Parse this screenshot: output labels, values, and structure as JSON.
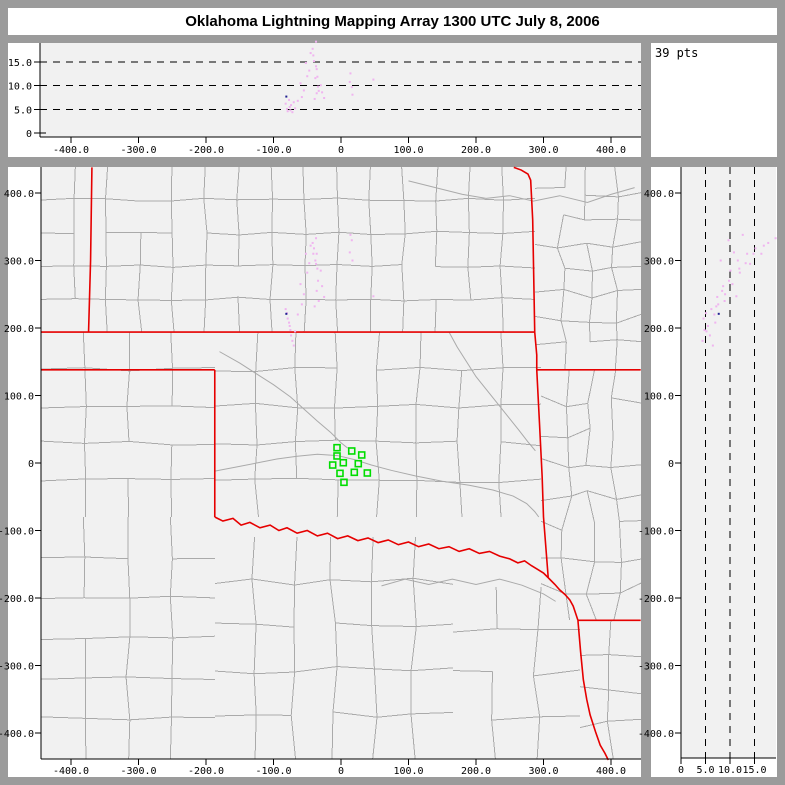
{
  "title": "Oklahoma Lightning Mapping Array   1300 UTC  July 8, 2006",
  "points_label": "39 pts",
  "colors": {
    "frame": "#9b9b9b",
    "panel_bg": "#ffffff",
    "plot_bg": "#f1f1f1",
    "county": "#aaaaaa",
    "river": "#aaaaaa",
    "state_border": "#e60000",
    "station": "#00dd00",
    "point_faint": "#f0b4f0",
    "point_dark": "#202090",
    "axis": "#000000"
  },
  "axes": {
    "east_west_km": {
      "ticks": [
        -400,
        -300,
        -200,
        -100,
        0,
        100,
        200,
        300,
        400
      ],
      "tick_labels": [
        "-400.0",
        "-300.0",
        "-200.0",
        "-100.0",
        "0",
        "100.0",
        "200.0",
        "300.0",
        "400.0"
      ]
    },
    "north_south_km": {
      "ticks": [
        400,
        300,
        200,
        100,
        0,
        -100,
        -200,
        -300,
        -400
      ],
      "tick_labels": [
        "400.0",
        "300.0",
        "200.0",
        "100.0",
        "0",
        "-100.0",
        "-200.0",
        "-300.0",
        "-400.0"
      ]
    },
    "altitude_km": {
      "ticks": [
        0,
        5,
        10,
        15
      ],
      "tick_labels": [
        "0",
        "5.0",
        "10.0",
        "15.0"
      ],
      "dashed_levels": [
        5,
        10,
        15
      ]
    }
  },
  "chart_data": {
    "type": "scatter",
    "title": "Oklahoma Lightning Mapping Array   1300 UTC  July 8, 2006",
    "points_count": 39,
    "panels": [
      {
        "name": "altitude-vs-eastwest",
        "x": "east_west_km",
        "y": "altitude_km",
        "xlim": [
          -444,
          444
        ],
        "ylim": [
          0,
          19.5
        ]
      },
      {
        "name": "plan-view-map",
        "x": "east_west_km",
        "y": "north_south_km",
        "xlim": [
          -444,
          444
        ],
        "ylim": [
          -438,
          438
        ]
      },
      {
        "name": "altitude-vs-northsouth",
        "x": "altitude_km",
        "y": "north_south_km",
        "xlim": [
          0,
          19.5
        ],
        "ylim": [
          -438,
          438
        ]
      }
    ],
    "points_e_n_alt": [
      [
        -82,
        228,
        6.2
      ],
      [
        -80,
        222,
        5.1
      ],
      [
        -79,
        214,
        4.6
      ],
      [
        -77,
        208,
        7.0
      ],
      [
        -76,
        203,
        5.5
      ],
      [
        -75,
        197,
        4.8
      ],
      [
        -74,
        189,
        5.9
      ],
      [
        -72,
        181,
        4.4
      ],
      [
        -70,
        174,
        6.5
      ],
      [
        -81,
        221,
        7.7
      ],
      [
        -37,
        333,
        19.3
      ],
      [
        -42,
        326,
        17.8
      ],
      [
        -40,
        318,
        15.2
      ],
      [
        -36,
        310,
        13.5
      ],
      [
        -38,
        300,
        11.6
      ],
      [
        -35,
        288,
        11.9
      ],
      [
        -34,
        270,
        9.8
      ],
      [
        -36,
        255,
        8.4
      ],
      [
        -33,
        240,
        8.9
      ],
      [
        -39,
        232,
        7.2
      ],
      [
        -41,
        310,
        16.4
      ],
      [
        -37,
        295,
        14.1
      ],
      [
        14,
        338,
        12.6
      ],
      [
        16,
        330,
        9.7
      ],
      [
        13,
        312,
        10.8
      ],
      [
        17,
        300,
        8.1
      ],
      [
        -55,
        250,
        9.0
      ],
      [
        -60,
        265,
        10.5
      ],
      [
        -50,
        282,
        12.0
      ],
      [
        -47,
        296,
        13.2
      ],
      [
        -58,
        235,
        7.6
      ],
      [
        -64,
        220,
        6.8
      ],
      [
        -52,
        310,
        14.8
      ],
      [
        -45,
        322,
        16.9
      ],
      [
        -30,
        285,
        10.1
      ],
      [
        -28,
        262,
        8.6
      ],
      [
        -25,
        246,
        7.4
      ],
      [
        48,
        247,
        11.3
      ],
      [
        -68,
        195,
        5.2
      ]
    ],
    "dark_point_index": 9,
    "stations_e_n": [
      [
        -5.9,
        22.7
      ],
      [
        15.9,
        17.8
      ],
      [
        30.7,
        11.9
      ],
      [
        -5.9,
        10.4
      ],
      [
        -12.3,
        -3.0
      ],
      [
        3.4,
        0.4
      ],
      [
        25.6,
        -1.0
      ],
      [
        -1.5,
        -15.3
      ],
      [
        19.7,
        -13.8
      ],
      [
        39.0,
        -14.8
      ],
      [
        4.4,
        -28.6
      ]
    ]
  },
  "map": {
    "state_borders_km": [
      [
        [
          -369,
          438
        ],
        [
          -371,
          300
        ],
        [
          -374,
          194
        ]
      ],
      [
        [
          -444,
          194
        ],
        [
          287,
          194
        ]
      ],
      [
        [
          256,
          438
        ],
        [
          267,
          434
        ],
        [
          277,
          428
        ],
        [
          281,
          419
        ],
        [
          284,
          360
        ],
        [
          287,
          194
        ]
      ],
      [
        [
          287,
          194
        ],
        [
          290,
          160
        ],
        [
          290,
          138
        ]
      ],
      [
        [
          290,
          138
        ],
        [
          444,
          138
        ]
      ],
      [
        [
          290,
          138
        ],
        [
          294,
          60
        ],
        [
          298,
          -20
        ],
        [
          300,
          -80
        ],
        [
          307,
          -170
        ]
      ],
      [
        [
          -444,
          138
        ],
        [
          -187,
          138
        ]
      ],
      [
        [
          -187,
          138
        ],
        [
          -187,
          -80
        ]
      ],
      [
        [
          -187,
          -80
        ],
        [
          -175,
          -86
        ],
        [
          -160,
          -82
        ],
        [
          -148,
          -92
        ],
        [
          -135,
          -88
        ],
        [
          -120,
          -96
        ],
        [
          -105,
          -92
        ],
        [
          -92,
          -100
        ],
        [
          -80,
          -96
        ],
        [
          -65,
          -104
        ],
        [
          -50,
          -100
        ],
        [
          -35,
          -108
        ],
        [
          -20,
          -104
        ],
        [
          -5,
          -112
        ],
        [
          10,
          -108
        ],
        [
          25,
          -115
        ],
        [
          40,
          -111
        ],
        [
          55,
          -118
        ],
        [
          70,
          -114
        ],
        [
          85,
          -121
        ],
        [
          100,
          -117
        ],
        [
          115,
          -124
        ],
        [
          130,
          -120
        ],
        [
          145,
          -127
        ],
        [
          160,
          -124
        ],
        [
          175,
          -131
        ],
        [
          190,
          -127
        ],
        [
          205,
          -134
        ],
        [
          220,
          -131
        ],
        [
          235,
          -138
        ],
        [
          250,
          -142
        ],
        [
          262,
          -148
        ],
        [
          272,
          -145
        ],
        [
          282,
          -152
        ],
        [
          292,
          -158
        ],
        [
          300,
          -163
        ],
        [
          307,
          -170
        ]
      ],
      [
        [
          307,
          -170
        ],
        [
          317,
          -180
        ],
        [
          324,
          -188
        ],
        [
          332,
          -195
        ],
        [
          339,
          -203
        ],
        [
          344,
          -212
        ],
        [
          347,
          -221
        ],
        [
          351,
          -233
        ]
      ],
      [
        [
          351,
          -233
        ],
        [
          444,
          -233
        ]
      ],
      [
        [
          351,
          -233
        ],
        [
          355,
          -280
        ],
        [
          359,
          -321
        ],
        [
          364,
          -350
        ],
        [
          369,
          -373
        ],
        [
          377,
          -398
        ],
        [
          384,
          -418
        ],
        [
          391,
          -430
        ],
        [
          396,
          -440
        ]
      ]
    ],
    "rivers_km": [
      [
        [
          100,
          418
        ],
        [
          140,
          408
        ],
        [
          180,
          398
        ],
        [
          215,
          392
        ],
        [
          250,
          396
        ],
        [
          285,
          388
        ],
        [
          324,
          396
        ],
        [
          365,
          386
        ],
        [
          400,
          398
        ],
        [
          435,
          408
        ]
      ],
      [
        [
          -180,
          165
        ],
        [
          -150,
          148
        ],
        [
          -125,
          132
        ],
        [
          -100,
          116
        ],
        [
          -75,
          98
        ],
        [
          -55,
          80
        ],
        [
          -35,
          62
        ],
        [
          -15,
          45
        ],
        [
          0,
          30
        ],
        [
          10,
          22
        ]
      ],
      [
        [
          -187,
          -12
        ],
        [
          -155,
          -6
        ],
        [
          -125,
          0
        ],
        [
          -95,
          6
        ],
        [
          -65,
          10
        ],
        [
          -35,
          13
        ],
        [
          -5,
          11
        ],
        [
          20,
          5
        ],
        [
          45,
          -3
        ],
        [
          75,
          -11
        ],
        [
          110,
          -19
        ],
        [
          150,
          -27
        ],
        [
          190,
          -33
        ],
        [
          225,
          -40
        ],
        [
          255,
          -49
        ],
        [
          275,
          -60
        ],
        [
          287,
          -72
        ],
        [
          293,
          -80
        ]
      ],
      [
        [
          160,
          194
        ],
        [
          172,
          172
        ],
        [
          186,
          150
        ],
        [
          200,
          128
        ],
        [
          216,
          108
        ],
        [
          232,
          88
        ],
        [
          248,
          68
        ],
        [
          264,
          48
        ],
        [
          278,
          30
        ],
        [
          288,
          18
        ]
      ],
      [
        [
          60,
          -182
        ],
        [
          95,
          -172
        ],
        [
          130,
          -180
        ],
        [
          165,
          -172
        ],
        [
          200,
          -180
        ],
        [
          235,
          -172
        ],
        [
          268,
          -181
        ],
        [
          300,
          -194
        ],
        [
          318,
          -205
        ]
      ]
    ]
  }
}
